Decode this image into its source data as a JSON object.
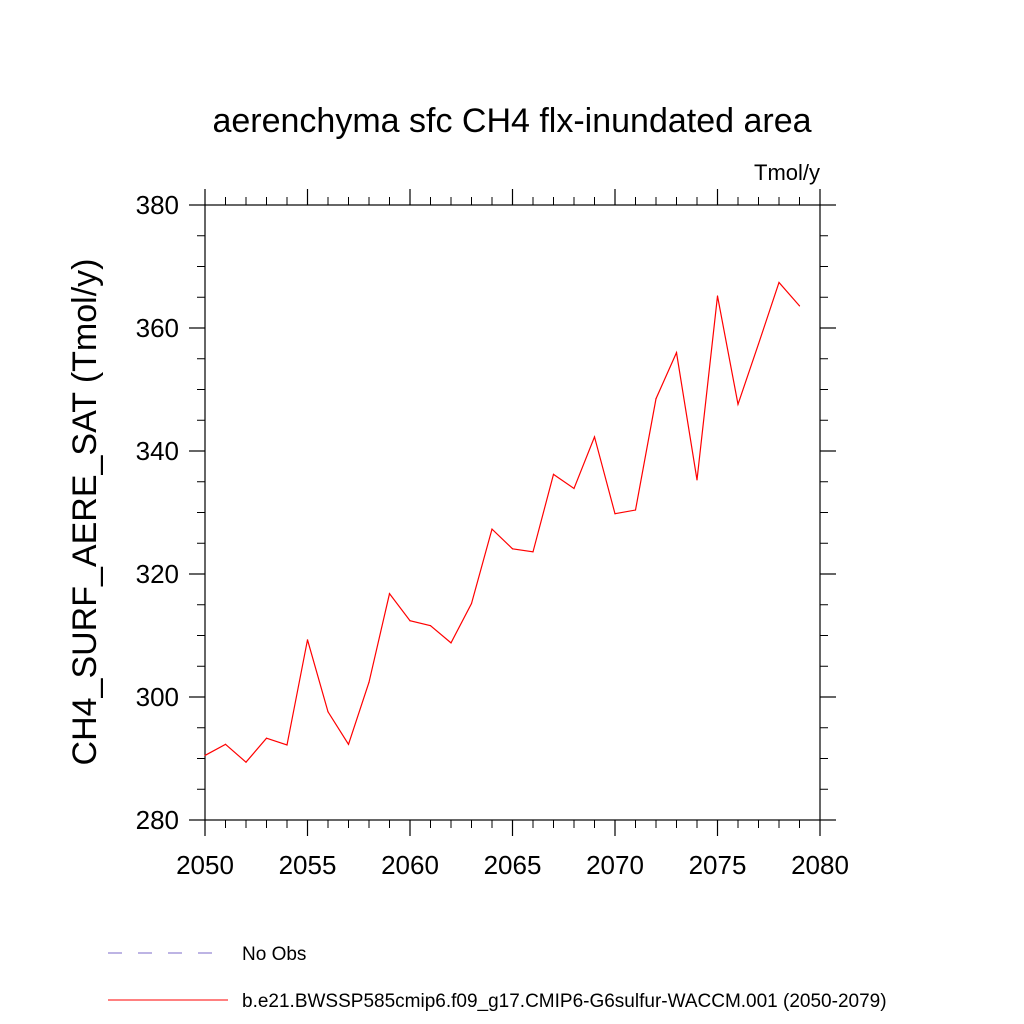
{
  "chart_data": {
    "type": "line",
    "title": "aerenchyma sfc CH4 flx-inundated area",
    "units_label": "Tmol/y",
    "ylabel": "CH4_SURF_AERE_SAT  (Tmol/y)",
    "xlabel": "",
    "xlim": [
      2050,
      2080
    ],
    "ylim": [
      280,
      380
    ],
    "x_ticks": [
      2050,
      2055,
      2060,
      2065,
      2070,
      2075,
      2080
    ],
    "y_ticks": [
      280,
      300,
      320,
      340,
      360,
      380
    ],
    "x": [
      2050,
      2051,
      2052,
      2053,
      2054,
      2055,
      2056,
      2057,
      2058,
      2059,
      2060,
      2061,
      2062,
      2063,
      2064,
      2065,
      2066,
      2067,
      2068,
      2069,
      2070,
      2071,
      2072,
      2073,
      2074,
      2075,
      2076,
      2077,
      2078,
      2079
    ],
    "series": [
      {
        "name": "b.e21.BWSSP585cmip6.f09_g17.CMIP6-G6sulfur-WACCM.001 (2050-2079)",
        "color": "#ff0000",
        "values": [
          290.5,
          292.3,
          289.4,
          293.3,
          292.2,
          309.3,
          297.6,
          292.3,
          302.4,
          316.8,
          312.4,
          311.6,
          308.8,
          315.2,
          327.3,
          324.1,
          323.6,
          336.2,
          333.9,
          342.3,
          329.8,
          330.4,
          348.5,
          356.0,
          335.3,
          365.2,
          347.6,
          357.4,
          367.4,
          363.6
        ]
      }
    ],
    "legend": {
      "placement": "bottom",
      "entries": [
        {
          "label": "No Obs",
          "color": "#7b68c8",
          "style": "dashed"
        },
        {
          "label": "b.e21.BWSSP585cmip6.f09_g17.CMIP6-G6sulfur-WACCM.001 (2050-2079)",
          "color": "#ff0000",
          "style": "solid"
        }
      ]
    },
    "grid": false
  }
}
